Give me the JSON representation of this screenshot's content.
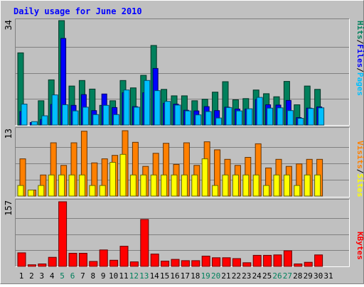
{
  "chart_data": [
    {
      "type": "bar",
      "title": "Daily usage for June 2010",
      "categories": [
        "1",
        "2",
        "3",
        "4",
        "5",
        "6",
        "7",
        "8",
        "9",
        "10",
        "11",
        "12",
        "13",
        "14",
        "15",
        "16",
        "17",
        "18",
        "19",
        "20",
        "21",
        "22",
        "23",
        "24",
        "25",
        "26",
        "27",
        "28",
        "29",
        "30",
        "31"
      ],
      "weekend_categories": [
        "5",
        "6",
        "12",
        "13",
        "19",
        "20",
        "26",
        "27"
      ],
      "ymax_label": "34",
      "ylim": [
        0,
        34
      ],
      "legend": [
        "Pages",
        "Files",
        "Hits"
      ],
      "series": [
        {
          "name": "Hits",
          "color": "#00805c",
          "values": [
            23.5,
            0,
            7.9,
            14.7,
            34,
            12.7,
            14.5,
            11.7,
            6.4,
            7.9,
            14.5,
            12.1,
            16.2,
            25.9,
            11.6,
            9.5,
            9.5,
            7.9,
            8.4,
            10.7,
            14.1,
            8.2,
            8.6,
            11.4,
            10.2,
            9.2,
            14.2,
            6.6,
            12.7,
            11.6,
            0
          ]
        },
        {
          "name": "Files",
          "color": "#0000ff",
          "values": [
            4.4,
            0.8,
            1.8,
            6.7,
            28.2,
            6.4,
            9.9,
            4.7,
            10.1,
            5.7,
            10.5,
            6,
            10.5,
            18.4,
            7.1,
            6.8,
            4.8,
            4.6,
            6,
            4.7,
            5.8,
            5.2,
            5.2,
            8.3,
            6.6,
            6.5,
            8,
            2.4,
            5.5,
            5.9,
            0
          ]
        },
        {
          "name": "Pages",
          "color": "#00bfff",
          "values": [
            6.8,
            1.1,
            3,
            9.8,
            6.6,
            4.6,
            5.8,
            3.4,
            6.4,
            3.4,
            11.4,
            5.8,
            14.5,
            11.2,
            7.7,
            6.5,
            4.6,
            3.3,
            4.4,
            2.3,
            5.7,
            4.6,
            5.3,
            9,
            5.5,
            5.6,
            4.7,
            2.2,
            5.4,
            5.6,
            0
          ]
        }
      ]
    },
    {
      "type": "bar",
      "ymax_label": "13",
      "ylim": [
        0,
        13
      ],
      "legend": [
        "Sites",
        "Visits"
      ],
      "series": [
        {
          "name": "Visits",
          "color": "#ff8000",
          "values": [
            7.4,
            1.2,
            4.2,
            10.6,
            6.1,
            10.6,
            12.9,
            6.6,
            7.4,
            8.1,
            13,
            10.7,
            5.9,
            8.5,
            10.5,
            6.3,
            10.6,
            6.1,
            10.8,
            9.2,
            7.3,
            6.1,
            7.7,
            10.4,
            5.6,
            7.3,
            5.9,
            6.4,
            7.3,
            7.3,
            0
          ]
        },
        {
          "name": "Sites",
          "color": "#ffff00",
          "values": [
            2.1,
            1.2,
            2.1,
            4.2,
            4.2,
            4.2,
            4.2,
            2.1,
            2.1,
            6.7,
            8.3,
            4.2,
            4.2,
            4.2,
            4.2,
            4.2,
            4.2,
            4.2,
            7.4,
            2.1,
            4.2,
            4.2,
            4.2,
            4.2,
            2.1,
            4.2,
            4.2,
            2.1,
            4.2,
            4.2,
            0
          ]
        }
      ]
    },
    {
      "type": "bar",
      "ymax_label": "157",
      "ylim": [
        0,
        157
      ],
      "legend": [
        "KBytes"
      ],
      "series": [
        {
          "name": "KBytes",
          "color": "#ff0000",
          "values": [
            33,
            4,
            6,
            22,
            157,
            32,
            32,
            12,
            40,
            15,
            49,
            11,
            114,
            30,
            13,
            17,
            14,
            14,
            25,
            21,
            21,
            19,
            9,
            27,
            27,
            28,
            38,
            6,
            10,
            28,
            0
          ]
        }
      ]
    }
  ]
}
